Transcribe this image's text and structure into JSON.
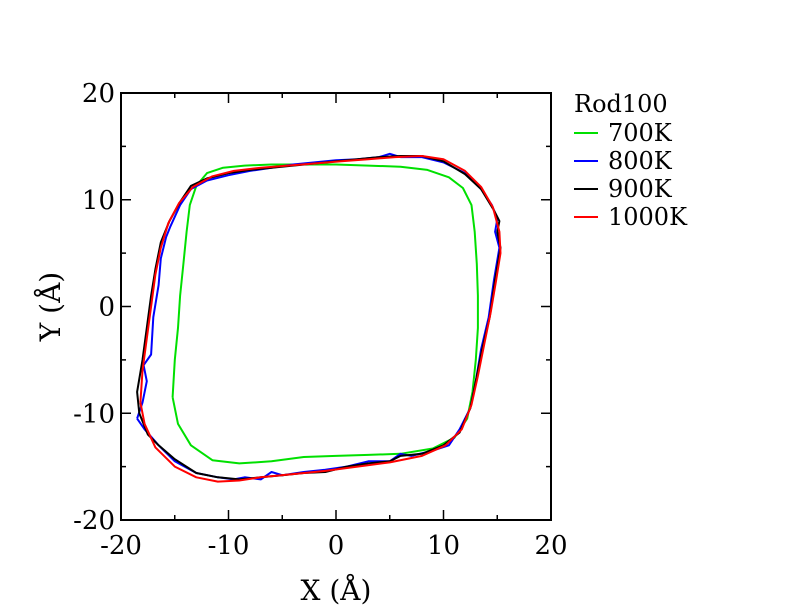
{
  "chart_data": {
    "type": "line",
    "xlabel": "X (Å)",
    "ylabel": "Y (Å)",
    "xlim": [
      -20,
      20
    ],
    "ylim": [
      -20,
      20
    ],
    "xticks": [
      -20,
      -10,
      0,
      10,
      20
    ],
    "yticks": [
      -20,
      -10,
      0,
      10,
      20
    ],
    "x_minor_step": 5,
    "y_minor_step": 5,
    "grid": false,
    "legend_title": "Rod100",
    "legend_position": "right",
    "series": [
      {
        "name": "700K",
        "color": "#00e000",
        "points": [
          [
            -15.2,
            -8.5
          ],
          [
            -15.0,
            -5.0
          ],
          [
            -14.7,
            -2.0
          ],
          [
            -14.5,
            1.0
          ],
          [
            -14.2,
            4.0
          ],
          [
            -13.9,
            7.0
          ],
          [
            -13.6,
            9.5
          ],
          [
            -13.0,
            11.3
          ],
          [
            -12.0,
            12.5
          ],
          [
            -10.5,
            13.0
          ],
          [
            -8.5,
            13.2
          ],
          [
            -6.0,
            13.3
          ],
          [
            -3.0,
            13.3
          ],
          [
            0.0,
            13.3
          ],
          [
            3.0,
            13.2
          ],
          [
            6.0,
            13.1
          ],
          [
            8.5,
            12.8
          ],
          [
            10.5,
            12.1
          ],
          [
            11.8,
            11.1
          ],
          [
            12.6,
            9.5
          ],
          [
            12.9,
            7.0
          ],
          [
            13.1,
            4.0
          ],
          [
            13.2,
            1.0
          ],
          [
            13.2,
            -2.0
          ],
          [
            13.0,
            -5.0
          ],
          [
            12.7,
            -8.0
          ],
          [
            12.2,
            -10.5
          ],
          [
            11.0,
            -12.3
          ],
          [
            9.0,
            -13.3
          ],
          [
            6.0,
            -13.8
          ],
          [
            3.0,
            -13.9
          ],
          [
            0.0,
            -14.0
          ],
          [
            -3.0,
            -14.1
          ],
          [
            -6.0,
            -14.5
          ],
          [
            -9.0,
            -14.7
          ],
          [
            -11.5,
            -14.4
          ],
          [
            -13.5,
            -13.0
          ],
          [
            -14.7,
            -11.0
          ],
          [
            -15.2,
            -8.5
          ]
        ]
      },
      {
        "name": "800K",
        "color": "#0000ff",
        "points": [
          [
            -18.5,
            -10.5
          ],
          [
            -18.0,
            -9.0
          ],
          [
            -17.6,
            -7.0
          ],
          [
            -17.9,
            -5.5
          ],
          [
            -17.2,
            -4.5
          ],
          [
            -17.0,
            -1.0
          ],
          [
            -16.5,
            2.0
          ],
          [
            -16.3,
            4.5
          ],
          [
            -15.8,
            6.5
          ],
          [
            -15.4,
            7.5
          ],
          [
            -14.5,
            9.5
          ],
          [
            -13.5,
            11.0
          ],
          [
            -12.0,
            11.8
          ],
          [
            -10.0,
            12.3
          ],
          [
            -8.0,
            12.7
          ],
          [
            -6.0,
            13.0
          ],
          [
            -4.0,
            13.3
          ],
          [
            -2.0,
            13.5
          ],
          [
            0.0,
            13.7
          ],
          [
            2.0,
            13.8
          ],
          [
            4.0,
            14.0
          ],
          [
            5.0,
            14.3
          ],
          [
            6.0,
            14.0
          ],
          [
            8.0,
            14.0
          ],
          [
            10.0,
            13.5
          ],
          [
            12.0,
            12.5
          ],
          [
            13.5,
            11.0
          ],
          [
            14.5,
            9.5
          ],
          [
            15.0,
            8.2
          ],
          [
            14.8,
            7.0
          ],
          [
            15.2,
            5.5
          ],
          [
            14.7,
            2.5
          ],
          [
            14.2,
            -1.0
          ],
          [
            13.5,
            -4.0
          ],
          [
            13.0,
            -7.0
          ],
          [
            12.5,
            -9.5
          ],
          [
            11.5,
            -11.5
          ],
          [
            10.5,
            -13.0
          ],
          [
            9.0,
            -13.5
          ],
          [
            7.0,
            -14.0
          ],
          [
            6.0,
            -13.8
          ],
          [
            5.0,
            -14.5
          ],
          [
            3.0,
            -14.5
          ],
          [
            1.0,
            -15.0
          ],
          [
            -1.0,
            -15.3
          ],
          [
            -3.0,
            -15.5
          ],
          [
            -5.0,
            -15.8
          ],
          [
            -6.0,
            -15.5
          ],
          [
            -7.0,
            -16.2
          ],
          [
            -8.5,
            -16.0
          ],
          [
            -9.5,
            -16.2
          ],
          [
            -11.0,
            -16.0
          ],
          [
            -13.0,
            -15.6
          ],
          [
            -15.0,
            -14.5
          ],
          [
            -16.5,
            -13.0
          ],
          [
            -17.8,
            -11.5
          ],
          [
            -18.5,
            -10.5
          ]
        ]
      },
      {
        "name": "900K",
        "color": "#000000",
        "points": [
          [
            -18.3,
            -10.0
          ],
          [
            -18.5,
            -8.0
          ],
          [
            -18.0,
            -5.0
          ],
          [
            -17.6,
            -2.0
          ],
          [
            -17.2,
            1.0
          ],
          [
            -16.8,
            3.5
          ],
          [
            -16.3,
            6.0
          ],
          [
            -15.5,
            8.0
          ],
          [
            -14.5,
            9.8
          ],
          [
            -13.5,
            11.3
          ],
          [
            -12.0,
            12.0
          ],
          [
            -10.0,
            12.5
          ],
          [
            -8.0,
            12.8
          ],
          [
            -6.0,
            13.0
          ],
          [
            -4.0,
            13.2
          ],
          [
            -2.0,
            13.4
          ],
          [
            0.0,
            13.6
          ],
          [
            2.0,
            13.8
          ],
          [
            4.0,
            14.0
          ],
          [
            6.0,
            14.1
          ],
          [
            8.0,
            14.1
          ],
          [
            10.0,
            13.6
          ],
          [
            12.0,
            12.4
          ],
          [
            13.5,
            11.0
          ],
          [
            14.7,
            9.0
          ],
          [
            15.2,
            8.0
          ],
          [
            15.0,
            7.0
          ],
          [
            15.3,
            5.5
          ],
          [
            14.8,
            2.5
          ],
          [
            14.3,
            -1.0
          ],
          [
            13.6,
            -4.0
          ],
          [
            13.0,
            -7.0
          ],
          [
            12.5,
            -9.5
          ],
          [
            11.5,
            -11.8
          ],
          [
            10.0,
            -13.0
          ],
          [
            8.0,
            -13.8
          ],
          [
            6.0,
            -14.0
          ],
          [
            5.0,
            -14.5
          ],
          [
            3.0,
            -14.7
          ],
          [
            1.0,
            -15.0
          ],
          [
            -1.0,
            -15.5
          ],
          [
            -3.0,
            -15.6
          ],
          [
            -5.0,
            -15.8
          ],
          [
            -7.0,
            -16.0
          ],
          [
            -9.0,
            -16.2
          ],
          [
            -11.0,
            -16.0
          ],
          [
            -13.0,
            -15.6
          ],
          [
            -15.0,
            -14.3
          ],
          [
            -16.5,
            -13.0
          ],
          [
            -17.5,
            -12.0
          ],
          [
            -18.3,
            -10.0
          ]
        ]
      },
      {
        "name": "1000K",
        "color": "#ff0000",
        "points": [
          [
            -18.2,
            -9.0
          ],
          [
            -18.0,
            -6.0
          ],
          [
            -17.6,
            -3.0
          ],
          [
            -17.2,
            0.0
          ],
          [
            -16.8,
            3.0
          ],
          [
            -16.3,
            5.5
          ],
          [
            -15.6,
            7.8
          ],
          [
            -14.6,
            9.7
          ],
          [
            -13.3,
            11.2
          ],
          [
            -11.5,
            12.2
          ],
          [
            -9.5,
            12.7
          ],
          [
            -7.0,
            13.0
          ],
          [
            -4.5,
            13.2
          ],
          [
            -2.0,
            13.4
          ],
          [
            0.5,
            13.6
          ],
          [
            3.0,
            13.8
          ],
          [
            5.5,
            14.0
          ],
          [
            8.0,
            14.1
          ],
          [
            10.0,
            13.8
          ],
          [
            12.0,
            12.7
          ],
          [
            13.5,
            11.2
          ],
          [
            14.6,
            9.3
          ],
          [
            15.2,
            7.0
          ],
          [
            15.3,
            5.0
          ],
          [
            14.9,
            2.5
          ],
          [
            14.4,
            -0.5
          ],
          [
            13.8,
            -3.5
          ],
          [
            13.2,
            -6.5
          ],
          [
            12.6,
            -9.2
          ],
          [
            11.7,
            -11.5
          ],
          [
            10.2,
            -13.0
          ],
          [
            8.0,
            -14.0
          ],
          [
            5.0,
            -14.6
          ],
          [
            2.0,
            -15.0
          ],
          [
            -1.0,
            -15.4
          ],
          [
            -4.0,
            -15.7
          ],
          [
            -7.0,
            -16.0
          ],
          [
            -9.0,
            -16.3
          ],
          [
            -11.0,
            -16.4
          ],
          [
            -13.0,
            -16.0
          ],
          [
            -15.0,
            -15.0
          ],
          [
            -16.8,
            -13.2
          ],
          [
            -17.8,
            -11.0
          ],
          [
            -18.2,
            -9.0
          ]
        ]
      }
    ]
  }
}
